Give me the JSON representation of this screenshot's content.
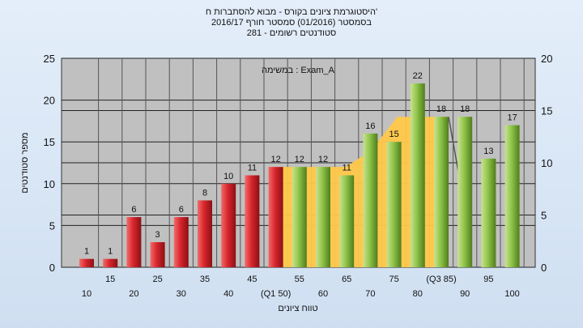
{
  "chart_data": {
    "type": "bar",
    "title_lines": [
      "היסטוגרמת ציונים בקורס - מבוא להסתברות ח'",
      "בסמסטר  (01/2016)  סמסטר חורף  2016/17",
      "סטודנטים רשומים - 281"
    ],
    "legend_text": "במשימה : Exam_A",
    "ylabel": "מספר סטודנטים",
    "xlabel": "טווח ציונים",
    "ylim_left": [
      0,
      25
    ],
    "yticks_left": [
      0,
      5,
      10,
      15,
      20,
      25
    ],
    "ylim_right": [
      0,
      20
    ],
    "yticks_right": [
      0,
      5,
      10,
      15,
      20
    ],
    "grid": true,
    "x_tick_labels": [
      "10",
      "15",
      "20",
      "25",
      "30",
      "35",
      "40",
      "45",
      "(Q1 50)",
      "55",
      "60",
      "65",
      "70",
      "75",
      "80",
      "(Q3 85)",
      "90",
      "95",
      "100"
    ],
    "bars": [
      {
        "x": "10",
        "value": 1,
        "color": "red"
      },
      {
        "x": "15",
        "value": 1,
        "color": "red"
      },
      {
        "x": "20",
        "value": 6,
        "color": "red"
      },
      {
        "x": "25",
        "value": 3,
        "color": "red"
      },
      {
        "x": "30",
        "value": 6,
        "color": "red"
      },
      {
        "x": "35",
        "value": 8,
        "color": "red"
      },
      {
        "x": "40",
        "value": 10,
        "color": "red"
      },
      {
        "x": "45",
        "value": 11,
        "color": "red"
      },
      {
        "x": "50",
        "value": 12,
        "color": "red"
      },
      {
        "x": "55",
        "value": 12,
        "color": "green"
      },
      {
        "x": "60",
        "value": 12,
        "color": "green"
      },
      {
        "x": "65",
        "value": 11,
        "color": "green"
      },
      {
        "x": "70",
        "value": 16,
        "color": "green"
      },
      {
        "x": "75",
        "value": 15,
        "color": "green"
      },
      {
        "x": "80",
        "value": 22,
        "color": "green"
      },
      {
        "x": "85",
        "value": 18,
        "color": "green"
      },
      {
        "x": "90",
        "value": 18,
        "color": "green"
      },
      {
        "x": "95",
        "value": 13,
        "color": "green"
      },
      {
        "x": "100",
        "value": 17,
        "color": "green"
      }
    ],
    "highlight_area": {
      "from": "50",
      "to": "85",
      "values_left_axis": [
        12,
        12,
        12,
        12,
        14,
        18,
        18,
        18
      ]
    },
    "colors": {
      "plot_bg": "#c0c0c0",
      "red_bar": "#d7262c",
      "green_bar": "#8fc44a",
      "highlight": "#ffc84a"
    }
  }
}
